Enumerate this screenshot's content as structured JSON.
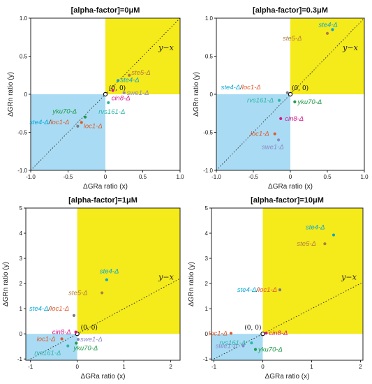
{
  "colors": {
    "yellow_region": "#f5ea1a",
    "blue_region": "#a9dcf4",
    "ste4": "#0aa6d6",
    "ste5": "#b07a46",
    "loc1": "#e0582a",
    "cin8": "#d6178c",
    "swe1": "#8c86c6",
    "rvs161": "#2db5a9",
    "yku70": "#1f9a48",
    "ste4_loc1": "#7d7d7d",
    "point_default": "#555555"
  },
  "chart_data": [
    {
      "type": "scatter",
      "title": "[alpha-factor]=0μM",
      "xlabel": "ΔGRa ratio (x)",
      "ylabel": "ΔGRn ratio (y)",
      "xlim": [
        -1.0,
        1.0
      ],
      "ylim": [
        -1.0,
        1.0
      ],
      "xticks": [
        -1.0,
        -0.5,
        0,
        0.5,
        1.0
      ],
      "yticks": [
        -1.0,
        -0.5,
        0,
        0.5,
        1.0
      ],
      "xtick_labels": [
        "-1.0",
        "-0.5",
        "0",
        "0.5",
        "1.0"
      ],
      "ytick_labels": [
        "-1.0",
        "-0.5",
        "0",
        "0.5",
        "1.0"
      ],
      "grid": false,
      "diagonal_label": "y−x",
      "origin_label": "(0, 0)",
      "series": [
        {
          "name": "ste5-Δ",
          "x": 0.32,
          "y": 0.25,
          "color_key": "ste5"
        },
        {
          "name": "ste4-Δ",
          "x": 0.17,
          "y": 0.18,
          "color_key": "ste4"
        },
        {
          "name": "cin8-Δ",
          "x": 0.1,
          "y": 0.05,
          "color_key": "cin8"
        },
        {
          "name": "swe1-Δ",
          "x": 0.25,
          "y": 0.02,
          "color_key": "swe1"
        },
        {
          "name": "rvs161-Δ",
          "x": 0.04,
          "y": -0.11,
          "color_key": "rvs161"
        },
        {
          "name": "yku70-Δ",
          "x": -0.27,
          "y": -0.3,
          "color_key": "yku70"
        },
        {
          "name": "loc1-Δ",
          "x": -0.32,
          "y": -0.37,
          "color_key": "loc1"
        },
        {
          "name": "ste4-Δ/loc1-Δ",
          "x": -0.37,
          "y": -0.42,
          "color_key": "ste4_loc1"
        }
      ]
    },
    {
      "type": "scatter",
      "title": "[alpha-factor]=0.3μM",
      "xlabel": "ΔGRa ratio (x)",
      "ylabel": "ΔGRn ratio (y)",
      "xlim": [
        -1.0,
        1.0
      ],
      "ylim": [
        -1.0,
        1.0
      ],
      "xticks": [
        -1.0,
        -0.5,
        0,
        0.5,
        1.0
      ],
      "yticks": [
        -1.0,
        -0.5,
        0,
        0.5,
        1.0
      ],
      "xtick_labels": [
        "-1.0",
        "-0.5",
        "0",
        "0.5",
        "1.0"
      ],
      "ytick_labels": [
        "-1.0",
        "-0.5",
        "0",
        "0.5",
        "1.0"
      ],
      "grid": false,
      "diagonal_label": "y−x",
      "origin_label": "(0, 0)",
      "series": [
        {
          "name": "ste4-Δ",
          "x": 0.57,
          "y": 0.85,
          "color_key": "ste4"
        },
        {
          "name": "ste5-Δ",
          "x": 0.5,
          "y": 0.8,
          "color_key": "ste5"
        },
        {
          "name": "ste4-Δ/loc1-Δ",
          "x": -0.04,
          "y": 0.02,
          "color_key": "ste4_loc1"
        },
        {
          "name": "yku70-Δ",
          "x": 0.06,
          "y": -0.1,
          "color_key": "yku70"
        },
        {
          "name": "rvs161-Δ",
          "x": -0.15,
          "y": -0.08,
          "color_key": "rvs161"
        },
        {
          "name": "cin8-Δ",
          "x": -0.13,
          "y": -0.32,
          "color_key": "cin8"
        },
        {
          "name": "loc1-Δ",
          "x": -0.21,
          "y": -0.52,
          "color_key": "loc1"
        },
        {
          "name": "swe1-Δ",
          "x": -0.16,
          "y": -0.6,
          "color_key": "swe1"
        }
      ]
    },
    {
      "type": "scatter",
      "title": "[alpha-factor]=1μM",
      "xlabel": "ΔGRa ratio (x)",
      "ylabel": "ΔGRn ratio (y)",
      "xlim": [
        -1.1,
        2.2
      ],
      "ylim": [
        -1.05,
        5.0
      ],
      "xticks": [
        -1,
        0,
        1,
        2
      ],
      "yticks": [
        -1,
        0,
        1,
        2,
        3,
        4,
        5
      ],
      "xtick_labels": [
        "-1",
        "0",
        "1",
        "2"
      ],
      "ytick_labels": [
        "-1",
        "0",
        "1",
        "2",
        "3",
        "4",
        "5"
      ],
      "grid": false,
      "diagonal_label": "y−x",
      "origin_label": "(0, 0)",
      "series": [
        {
          "name": "ste4-Δ",
          "x": 0.63,
          "y": 2.15,
          "color_key": "ste4"
        },
        {
          "name": "ste5-Δ",
          "x": 0.53,
          "y": 1.63,
          "color_key": "ste5"
        },
        {
          "name": "ste4-Δ/loc1-Δ",
          "x": -0.07,
          "y": 0.73,
          "color_key": "ste4_loc1"
        },
        {
          "name": "cin8-Δ",
          "x": -0.03,
          "y": 0.07,
          "color_key": "cin8"
        },
        {
          "name": "loc1-Δ",
          "x": -0.33,
          "y": -0.2,
          "color_key": "loc1"
        },
        {
          "name": "swe1-Δ",
          "x": 0.02,
          "y": -0.22,
          "color_key": "swe1"
        },
        {
          "name": "yku70-Δ",
          "x": -0.02,
          "y": -0.37,
          "color_key": "yku70"
        },
        {
          "name": "rvs161-Δ",
          "x": -0.2,
          "y": -0.48,
          "color_key": "rvs161"
        }
      ]
    },
    {
      "type": "scatter",
      "title": "[alpha-factor]=10μM",
      "xlabel": "ΔGRa ratio (x)",
      "ylabel": "ΔGRn ratio (y)",
      "xlim": [
        -1.05,
        2.05
      ],
      "ylim": [
        -1.05,
        5.0
      ],
      "xticks": [
        -1,
        0,
        1,
        2
      ],
      "yticks": [
        -1,
        0,
        1,
        2,
        3,
        4,
        5
      ],
      "xtick_labels": [
        "-1",
        "0",
        "1",
        "2"
      ],
      "ytick_labels": [
        "-1",
        "0",
        "1",
        "2",
        "3",
        "4",
        "5"
      ],
      "grid": false,
      "diagonal_label": "y−x",
      "origin_label": "(0, 0)",
      "series": [
        {
          "name": "ste4-Δ",
          "x": 1.45,
          "y": 3.93,
          "color_key": "ste4"
        },
        {
          "name": "ste5-Δ",
          "x": 1.27,
          "y": 3.58,
          "color_key": "ste5"
        },
        {
          "name": "ste4-Δ/loc1-Δ",
          "x": 0.35,
          "y": 1.75,
          "color_key": "ste4_loc1"
        },
        {
          "name": "cin8-Δ",
          "x": 0.07,
          "y": 0.03,
          "color_key": "cin8"
        },
        {
          "name": "loc1-Δ",
          "x": -0.65,
          "y": 0.02,
          "color_key": "loc1"
        },
        {
          "name": "rvs161-Δ",
          "x": -0.23,
          "y": -0.36,
          "color_key": "rvs161"
        },
        {
          "name": "swe1-Δ",
          "x": -0.4,
          "y": -0.48,
          "color_key": "swe1"
        },
        {
          "name": "yku70-Δ",
          "x": -0.15,
          "y": -0.62,
          "color_key": "yku70"
        }
      ]
    }
  ]
}
